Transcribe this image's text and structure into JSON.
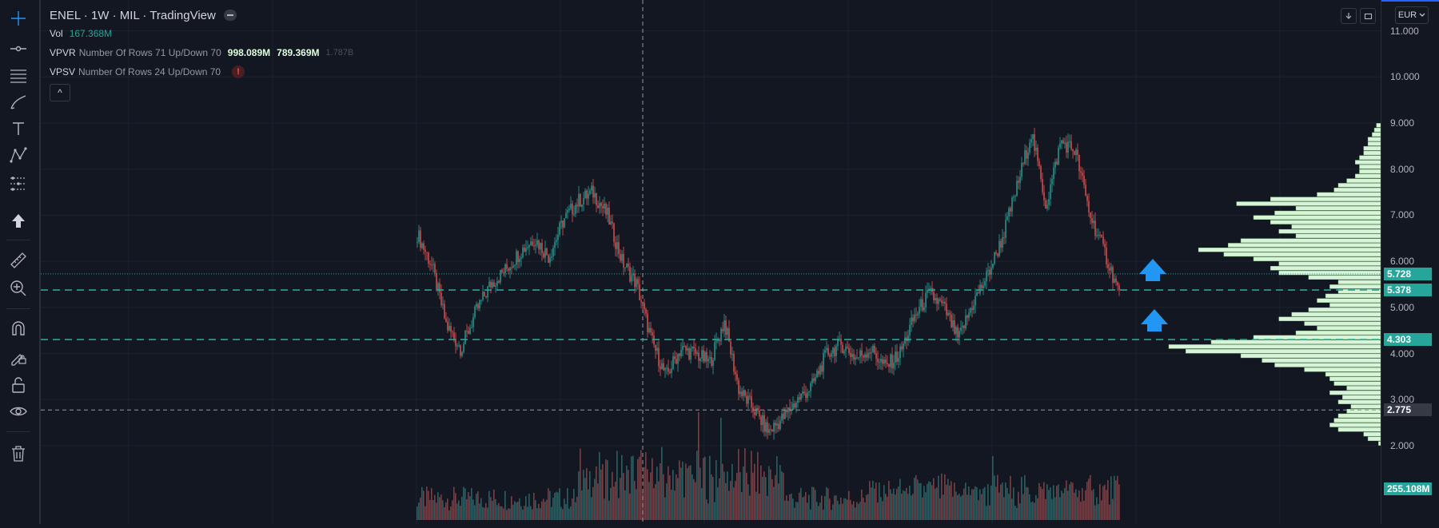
{
  "header": {
    "symbol_line": "ENEL · 1W · MIL · TradingView",
    "vol_label": "Vol",
    "vol_value": "167.368M",
    "vpvr_name": "VPVR",
    "vpvr_params": "Number Of Rows 71 Up/Down 70",
    "vpvr_up": "998.089M",
    "vpvr_down": "789.369M",
    "vpvr_total": "1.787B",
    "vpsv_name": "VPSV",
    "vpsv_params": "Number Of Rows 24 Up/Down 70",
    "vpsv_warning": "!",
    "collapse_glyph": "^"
  },
  "currency": "EUR",
  "price_axis": {
    "ticks": [
      "11.000",
      "10.000",
      "9.000",
      "8.000",
      "7.000",
      "6.000",
      "5.000",
      "4.000",
      "3.000",
      "2.000"
    ],
    "badges": {
      "current": "5.728",
      "level_upper": "5.378",
      "level_lower": "4.303",
      "crosshair": "2.775",
      "volume": "255.108M"
    }
  },
  "toolbar": {
    "icons": [
      "crosshair-icon",
      "trend-line-icon",
      "fib-retracement-icon",
      "brush-icon",
      "text-icon",
      "pattern-icon",
      "prediction-icon",
      "arrow-up-icon",
      "ruler-icon",
      "zoom-in-icon",
      "magnet-icon",
      "lock-drawing-icon",
      "unlock-icon",
      "eye-icon",
      "trash-icon"
    ]
  },
  "colors": {
    "background": "#131722",
    "up": "#26a69a",
    "down": "#ef5350",
    "level_line": "#26a69a",
    "profile_bar": "#d6f5d6",
    "arrow": "#2196f3"
  },
  "chart_data": {
    "type": "candlestick",
    "symbol": "ENEL",
    "interval": "1W",
    "exchange": "MIL",
    "price_range": [
      1.9,
      11.6
    ],
    "horizontal_levels": [
      5.378,
      4.303
    ],
    "current_price": 5.728,
    "crosshair_price": 2.775,
    "price_path_keypoints": [
      6.6,
      5.9,
      4.6,
      4.1,
      4.9,
      5.5,
      5.8,
      6.2,
      6.5,
      6.1,
      6.9,
      7.3,
      7.5,
      7.0,
      6.0,
      5.5,
      4.3,
      3.5,
      4.1,
      4.0,
      3.8,
      4.7,
      3.2,
      2.8,
      2.3,
      2.6,
      3.0,
      3.3,
      4.0,
      4.2,
      3.9,
      4.1,
      3.7,
      4.0,
      4.8,
      5.3,
      5.0,
      4.3,
      5.1,
      5.7,
      6.5,
      7.6,
      8.8,
      7.2,
      8.6,
      8.4,
      7.0,
      6.2,
      5.3
    ],
    "volume_profile_prices": [
      2.05,
      2.15,
      2.25,
      2.35,
      2.45,
      2.55,
      2.65,
      2.75,
      2.85,
      2.95,
      3.05,
      3.15,
      3.25,
      3.35,
      3.45,
      3.55,
      3.65,
      3.75,
      3.85,
      3.95,
      4.05,
      4.15,
      4.25,
      4.35,
      4.45,
      4.55,
      4.65,
      4.75,
      4.85,
      4.95,
      5.05,
      5.15,
      5.25,
      5.35,
      5.45,
      5.55,
      5.65,
      5.75,
      5.85,
      5.95,
      6.05,
      6.15,
      6.25,
      6.35,
      6.45,
      6.55,
      6.65,
      6.75,
      6.85,
      6.95,
      7.05,
      7.15,
      7.25,
      7.35,
      7.45,
      7.55,
      7.65,
      7.75,
      7.85,
      7.95,
      8.05,
      8.15,
      8.25,
      8.35,
      8.45,
      8.55,
      8.65,
      8.75,
      8.85,
      8.95
    ],
    "volume_profile_values": [
      0.5,
      3,
      4,
      10,
      12,
      11,
      10,
      8,
      7,
      10,
      9,
      12,
      8,
      11,
      12,
      13,
      18,
      25,
      28,
      33,
      46,
      50,
      40,
      30,
      20,
      15,
      18,
      24,
      21,
      17,
      12,
      15,
      13,
      10,
      12,
      10,
      17,
      24,
      26,
      24,
      30,
      37,
      43,
      36,
      33,
      20,
      24,
      21,
      26,
      30,
      25,
      20,
      34,
      26,
      15,
      11,
      10,
      8,
      6,
      5,
      5,
      6,
      5,
      4,
      4,
      3,
      3,
      2,
      1.5,
      1
    ],
    "last_volume": "255.108M"
  }
}
